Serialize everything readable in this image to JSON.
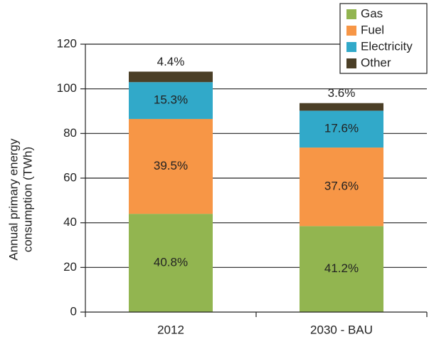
{
  "chart_data": {
    "type": "stacked-bar",
    "ylabel": [
      "Annual primary energy",
      "consumption (TWh)"
    ],
    "categories": [
      "2012",
      "2030 - BAU"
    ],
    "series": [
      {
        "name": "Gas",
        "color": "#92b550",
        "values": [
          44.0,
          38.5
        ],
        "labels": [
          "40.8%",
          "41.2%"
        ]
      },
      {
        "name": "Fuel",
        "color": "#f79646",
        "values": [
          42.5,
          35.2
        ],
        "labels": [
          "39.5%",
          "37.6%"
        ]
      },
      {
        "name": "Electricity",
        "color": "#31a9c9",
        "values": [
          16.5,
          16.5
        ],
        "labels": [
          "15.3%",
          "17.6%"
        ]
      },
      {
        "name": "Other",
        "color": "#4b3f27",
        "values": [
          4.7,
          3.4
        ],
        "labels": [
          "4.4%",
          "3.6%"
        ]
      }
    ],
    "ylim": [
      0,
      120
    ],
    "yticks": [
      0,
      20,
      40,
      60,
      80,
      100,
      120
    ],
    "grid": true
  }
}
